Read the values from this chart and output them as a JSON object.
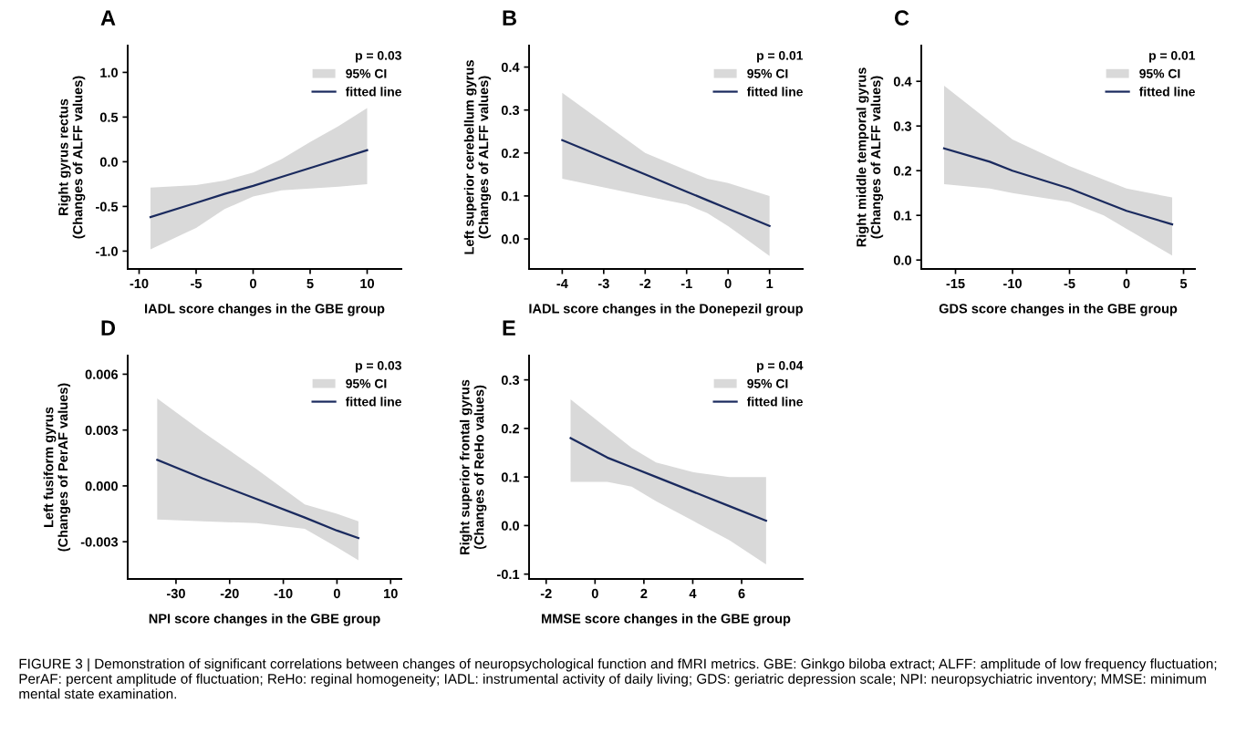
{
  "chart_data": [
    {
      "type": "line",
      "title": "A",
      "xlabel": "IADL score changes in the GBE group",
      "ylabel": "Right gyrus rectus\n(Changes of ALFF values)",
      "legend_title": "p = 0.03",
      "legend": "top right",
      "grid": false,
      "xlim": [
        -11,
        13
      ],
      "xticks": [
        -10,
        -5,
        0,
        5,
        10
      ],
      "ylim": [
        -1.2,
        1.3
      ],
      "yticks": [
        {
          "value": 1.0,
          "label": "1.0"
        },
        {
          "value": 0.5,
          "label": "0.5"
        },
        {
          "value": 0.0,
          "label": "0.0"
        },
        {
          "value": -0.5,
          "label": "-0.5"
        },
        {
          "value": -1.0,
          "label": "-1.0"
        }
      ],
      "annotations": [
        "95% CI"
      ],
      "series": [
        {
          "name": "fitted line",
          "type": "line",
          "color": "#1a2a5e",
          "x": [
            -9,
            -5,
            -2.5,
            0,
            2.5,
            5,
            7.5,
            10
          ],
          "values": [
            -0.62,
            -0.46,
            -0.36,
            -0.27,
            -0.17,
            -0.07,
            0.03,
            0.13
          ],
          "lower": [
            -0.98,
            -0.74,
            -0.53,
            -0.39,
            -0.32,
            -0.3,
            -0.28,
            -0.25
          ],
          "upper": [
            -0.29,
            -0.26,
            -0.21,
            -0.12,
            0.03,
            0.22,
            0.4,
            0.6
          ]
        }
      ]
    },
    {
      "type": "line",
      "title": "B",
      "xlabel": "IADL score changes in the Donepezil group",
      "ylabel": "Left superior cerebellum gyrus\n(Changes of ALFF values)",
      "legend_title": "p = 0.01",
      "legend": "top right",
      "grid": false,
      "xlim": [
        -4.8,
        1.8
      ],
      "xticks": [
        -4,
        -3,
        -2,
        -1,
        0,
        1
      ],
      "ylim": [
        -0.07,
        0.45
      ],
      "yticks": [
        {
          "value": 0.0,
          "label": "0.0"
        },
        {
          "value": 0.1,
          "label": "0.1"
        },
        {
          "value": 0.2,
          "label": "0.2"
        },
        {
          "value": 0.3,
          "label": "0.3"
        },
        {
          "value": 0.4,
          "label": "0.4"
        }
      ],
      "annotations": [
        "95% CI"
      ],
      "series": [
        {
          "name": "fitted line",
          "type": "line",
          "color": "#1a2a5e",
          "x": [
            -4,
            -3,
            -2,
            -1,
            -0.5,
            0,
            1
          ],
          "values": [
            0.23,
            0.19,
            0.15,
            0.11,
            0.09,
            0.07,
            0.03
          ],
          "lower": [
            0.14,
            0.12,
            0.1,
            0.08,
            0.06,
            0.03,
            -0.04
          ],
          "upper": [
            0.34,
            0.27,
            0.2,
            0.16,
            0.14,
            0.13,
            0.1
          ]
        }
      ]
    },
    {
      "type": "line",
      "title": "C",
      "xlabel": "GDS score changes in the GBE group",
      "ylabel": "Right middle temporal gyrus\n(Changes of ALFF values)",
      "legend_title": "p = 0.01",
      "legend": "top right",
      "grid": false,
      "xlim": [
        -18,
        6
      ],
      "xticks": [
        -15,
        -10,
        -5,
        0,
        5
      ],
      "ylim": [
        -0.02,
        0.48
      ],
      "yticks": [
        {
          "value": 0.0,
          "label": "0.0"
        },
        {
          "value": 0.1,
          "label": "0.1"
        },
        {
          "value": 0.2,
          "label": "0.2"
        },
        {
          "value": 0.3,
          "label": "0.3"
        },
        {
          "value": 0.4,
          "label": "0.4"
        }
      ],
      "annotations": [
        "95% CI"
      ],
      "series": [
        {
          "name": "fitted line",
          "type": "line",
          "color": "#1a2a5e",
          "x": [
            -16,
            -12,
            -10,
            -5,
            -2,
            0,
            4
          ],
          "values": [
            0.25,
            0.22,
            0.2,
            0.16,
            0.13,
            0.11,
            0.08
          ],
          "lower": [
            0.17,
            0.16,
            0.15,
            0.13,
            0.1,
            0.07,
            0.01
          ],
          "upper": [
            0.39,
            0.31,
            0.27,
            0.21,
            0.18,
            0.16,
            0.14
          ]
        }
      ]
    },
    {
      "type": "line",
      "title": "D",
      "xlabel": "NPI score changes in the GBE group",
      "ylabel": "Left fusiform gyrus\n(Changes of PerAF values)",
      "legend_title": "p = 0.03",
      "legend": "top right",
      "grid": false,
      "xlim": [
        -39,
        12
      ],
      "xticks": [
        -30,
        -20,
        -10,
        0,
        10
      ],
      "ylim": [
        -0.005,
        0.007
      ],
      "yticks": [
        {
          "value": 0.006,
          "label": "0.006"
        },
        {
          "value": 0.003,
          "label": "0.003"
        },
        {
          "value": 0.0,
          "label": "0.000"
        },
        {
          "value": -0.003,
          "label": "-0.003"
        }
      ],
      "annotations": [
        "95% CI"
      ],
      "series": [
        {
          "name": "fitted line",
          "type": "line",
          "color": "#1a2a5e",
          "x": [
            -33.5,
            -25,
            -15,
            -6,
            0,
            4
          ],
          "values": [
            0.0014,
            0.0004,
            -0.0007,
            -0.0017,
            -0.0024,
            -0.0028
          ],
          "lower": [
            -0.0018,
            -0.0019,
            -0.002,
            -0.0023,
            -0.0033,
            -0.004
          ],
          "upper": [
            0.0047,
            0.0029,
            0.0009,
            -0.001,
            -0.0015,
            -0.0019
          ]
        }
      ]
    },
    {
      "type": "line",
      "title": "E",
      "xlabel": "MMSE score changes in the GBE group",
      "ylabel": "Right superior frontal gyrus\n(Changes of ReHo values)",
      "legend_title": "p = 0.04",
      "legend": "top right",
      "grid": false,
      "xlim": [
        -2.7,
        8.5
      ],
      "xticks": [
        -2,
        0,
        2,
        4,
        6
      ],
      "ylim": [
        -0.11,
        0.35
      ],
      "yticks": [
        {
          "value": 0.3,
          "label": "0.3"
        },
        {
          "value": 0.2,
          "label": "0.2"
        },
        {
          "value": 0.1,
          "label": "0.1"
        },
        {
          "value": 0.0,
          "label": "0.0"
        },
        {
          "value": -0.1,
          "label": "-0.1"
        }
      ],
      "annotations": [
        "95% CI",
        "FIGURE 3 | Demonstration of significant correlations between changes of neuropsychological function and fMRI metrics. GBE: Ginkgo biloba extract; ALFF: amplitude of low frequency fluctuation; PerAF: percent amplitude of fluctuation; ReHo: reginal homogeneity; IADL: instrumental activity of daily living; GDS: geriatric depression scale; NPI: neuropsychiatric inventory; MMSE: minimum mental state examination."
      ],
      "series": [
        {
          "name": "fitted line",
          "type": "line",
          "color": "#1a2a5e",
          "x": [
            -1,
            0.5,
            1.5,
            2.5,
            4,
            5.5,
            7
          ],
          "values": [
            0.18,
            0.14,
            0.12,
            0.1,
            0.07,
            0.04,
            0.01
          ],
          "lower": [
            0.09,
            0.09,
            0.08,
            0.05,
            0.01,
            -0.03,
            -0.08
          ],
          "upper": [
            0.26,
            0.2,
            0.16,
            0.13,
            0.11,
            0.1,
            0.1
          ]
        }
      ]
    }
  ]
}
